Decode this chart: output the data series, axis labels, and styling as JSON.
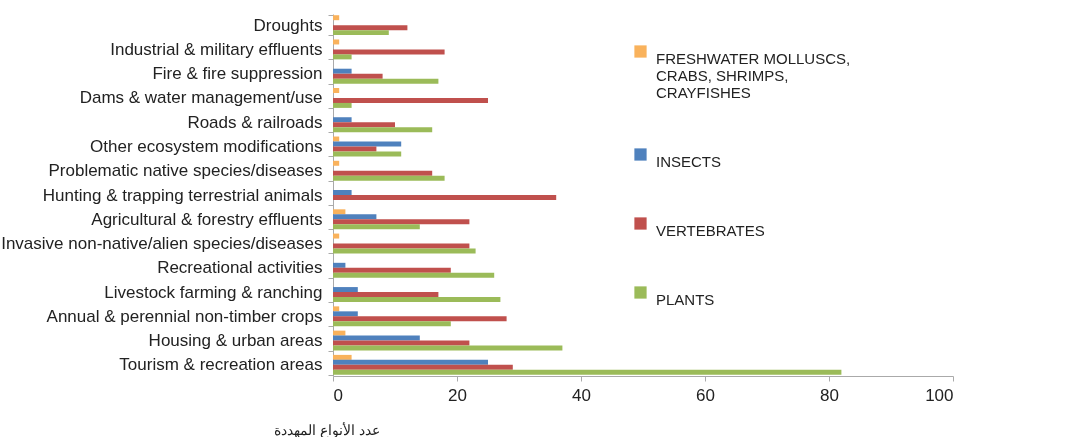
{
  "chart_data": {
    "type": "bar",
    "orientation": "horizontal",
    "xlabel": "عدد الأنواع المهددة",
    "categories": [
      "Droughts",
      "Industrial & military effluents",
      "Fire & fire suppression",
      "Dams & water management/use",
      "Roads & railroads",
      "Other ecosystem modifications",
      "Problematic native species/diseases",
      "Hunting & trapping terrestrial animals",
      "Agricultural & forestry effluents",
      "Invasive non-native/alien species/diseases",
      "Recreational activities",
      "Livestock farming & ranching",
      "Annual & perennial non-timber crops",
      "Housing & urban areas",
      "Tourism & recreation areas"
    ],
    "series": [
      {
        "name": "FRESHWATER MOLLUSCS, CRABS, SHRIMPS, CRAYFISHES",
        "color": "#f9b25c",
        "values": [
          1,
          1,
          null,
          1,
          null,
          1,
          1,
          null,
          2,
          1,
          null,
          null,
          1,
          2,
          3
        ]
      },
      {
        "name": "INSECTS",
        "color": "#4f81bd",
        "values": [
          null,
          null,
          3,
          null,
          3,
          11,
          null,
          3,
          7,
          null,
          2,
          4,
          4,
          14,
          25
        ]
      },
      {
        "name": "VERTEBRATES",
        "color": "#c0504d",
        "values": [
          12,
          18,
          8,
          25,
          10,
          7,
          16,
          36,
          22,
          22,
          19,
          17,
          28,
          22,
          29
        ]
      },
      {
        "name": "PLANTS",
        "color": "#9bbb59",
        "values": [
          9,
          3,
          17,
          3,
          16,
          11,
          18,
          null,
          14,
          23,
          26,
          27,
          19,
          37,
          82
        ]
      }
    ],
    "xlim": [
      0,
      100
    ],
    "xticks": [
      0,
      20,
      40,
      60,
      80,
      100
    ],
    "legend": "right"
  }
}
